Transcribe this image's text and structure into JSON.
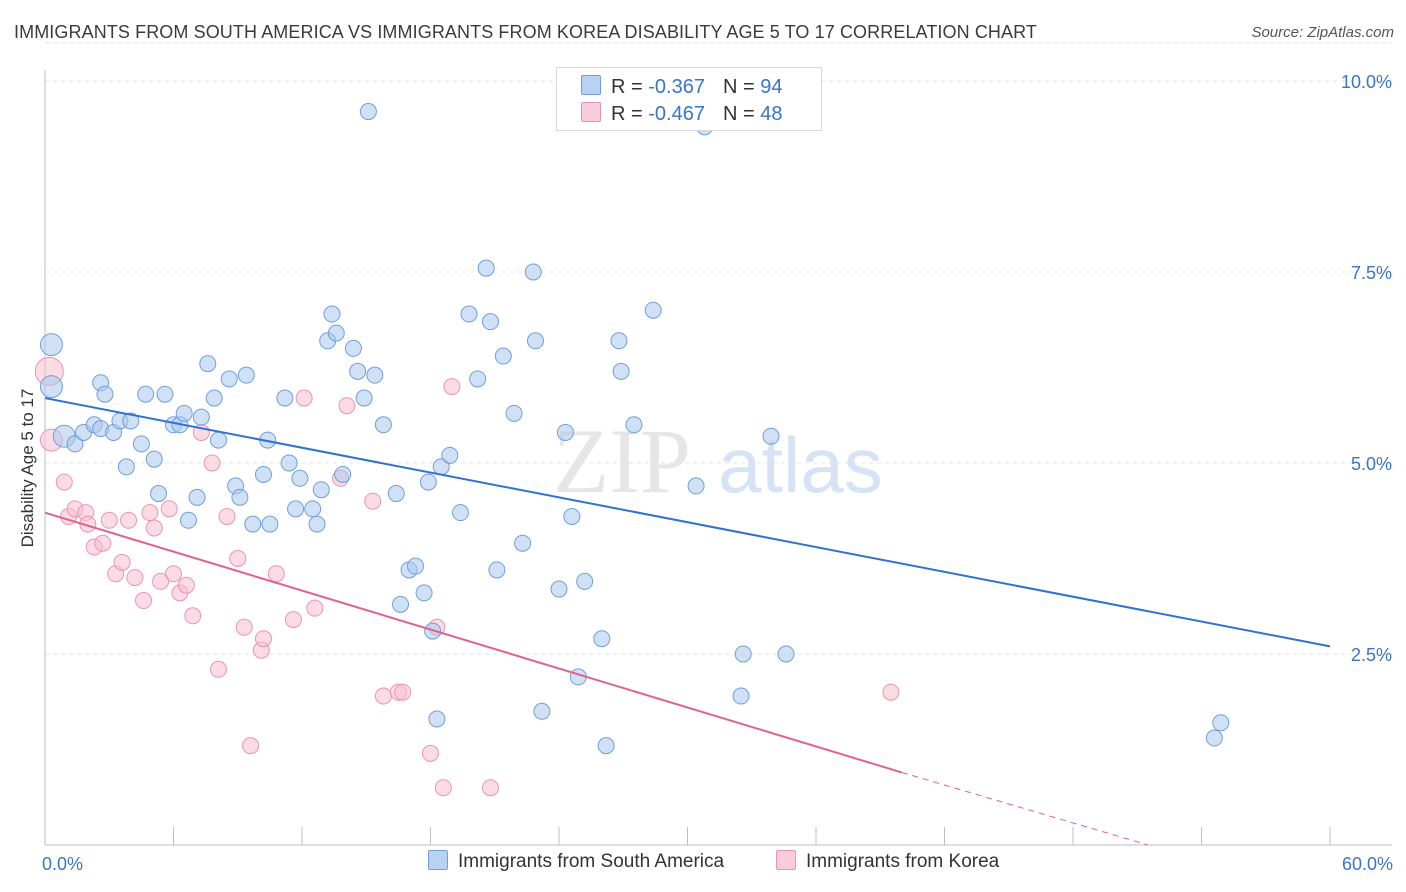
{
  "header": {
    "title": "IMMIGRANTS FROM SOUTH AMERICA VS IMMIGRANTS FROM KOREA DISABILITY AGE 5 TO 17 CORRELATION CHART",
    "source": "Source: ZipAtlas.com"
  },
  "watermark": {
    "zip": "ZIP",
    "atlas": "atlas"
  },
  "colors": {
    "blue_fill": "#a9c8ef",
    "blue_stroke": "#6f9fdc",
    "blue_line": "#2f72d2",
    "pink_fill": "#f7c0d0",
    "pink_stroke": "#eb94b0",
    "pink_line": "#e0628e",
    "tick_text": "#3a74c8",
    "grid": "#e4e4e4"
  },
  "legend_top": {
    "rows": [
      {
        "r_label": "R = ",
        "r_value": "-0.367",
        "n_label": "N = ",
        "n_value": "94"
      },
      {
        "r_label": "R = ",
        "r_value": "-0.467",
        "n_label": "N = ",
        "n_value": "48"
      }
    ]
  },
  "legend_bottom": {
    "items": [
      "Immigrants from South America",
      "Immigrants from Korea"
    ]
  },
  "chart_data": {
    "type": "scatter",
    "title": "IMMIGRANTS FROM SOUTH AMERICA VS IMMIGRANTS FROM KOREA DISABILITY AGE 5 TO 17 CORRELATION CHART",
    "xlabel": "",
    "ylabel": "Disability Age 5 to 17",
    "xlim": [
      0,
      60
    ],
    "ylim": [
      0,
      10.5
    ],
    "x_tick_labels": [
      "0.0%",
      "60.0%"
    ],
    "y_ticks": [
      2.5,
      5.0,
      7.5,
      10.0
    ],
    "y_tick_labels": [
      "2.5%",
      "5.0%",
      "7.5%",
      "10.0%"
    ],
    "grid": true,
    "legend_position": "top-center",
    "series": [
      {
        "name": "Immigrants from South America",
        "r": -0.367,
        "n": 94,
        "trend": {
          "x": [
            0,
            60
          ],
          "y": [
            5.85,
            2.6
          ]
        },
        "points": [
          [
            0.3,
            6.55,
            11
          ],
          [
            0.3,
            6.0,
            11
          ],
          [
            0.9,
            5.35,
            11
          ],
          [
            1.4,
            5.25,
            8
          ],
          [
            1.8,
            5.4,
            8
          ],
          [
            2.3,
            5.5,
            8
          ],
          [
            2.6,
            5.45,
            8
          ],
          [
            2.6,
            6.05,
            8
          ],
          [
            2.8,
            5.9,
            8
          ],
          [
            3.2,
            5.4,
            8
          ],
          [
            3.5,
            5.55,
            8
          ],
          [
            3.8,
            4.95,
            8
          ],
          [
            4.0,
            5.55,
            8
          ],
          [
            4.5,
            5.25,
            8
          ],
          [
            4.7,
            5.9,
            8
          ],
          [
            5.1,
            5.05,
            8
          ],
          [
            5.3,
            4.6,
            8
          ],
          [
            5.6,
            5.9,
            8
          ],
          [
            6.0,
            5.5,
            8
          ],
          [
            6.3,
            5.5,
            8
          ],
          [
            6.5,
            5.65,
            8
          ],
          [
            6.7,
            4.25,
            8
          ],
          [
            7.1,
            4.55,
            8
          ],
          [
            7.3,
            5.6,
            8
          ],
          [
            7.6,
            6.3,
            8
          ],
          [
            7.9,
            5.85,
            8
          ],
          [
            8.1,
            5.3,
            8
          ],
          [
            8.6,
            6.1,
            8
          ],
          [
            8.9,
            4.7,
            8
          ],
          [
            9.1,
            4.55,
            8
          ],
          [
            9.4,
            6.15,
            8
          ],
          [
            9.7,
            4.2,
            8
          ],
          [
            10.2,
            4.85,
            8
          ],
          [
            10.4,
            5.3,
            8
          ],
          [
            10.5,
            4.2,
            8
          ],
          [
            11.2,
            5.85,
            8
          ],
          [
            11.4,
            5.0,
            8
          ],
          [
            11.7,
            4.4,
            8
          ],
          [
            11.9,
            4.8,
            8
          ],
          [
            12.5,
            4.4,
            8
          ],
          [
            12.7,
            4.2,
            8
          ],
          [
            12.9,
            4.65,
            8
          ],
          [
            13.2,
            6.6,
            8
          ],
          [
            13.4,
            6.95,
            8
          ],
          [
            13.6,
            6.7,
            8
          ],
          [
            13.9,
            4.85,
            8
          ],
          [
            14.4,
            6.5,
            8
          ],
          [
            14.6,
            6.2,
            8
          ],
          [
            14.9,
            5.85,
            8
          ],
          [
            15.1,
            9.6,
            8
          ],
          [
            15.4,
            6.15,
            8
          ],
          [
            15.8,
            5.5,
            8
          ],
          [
            16.4,
            4.6,
            8
          ],
          [
            16.6,
            3.15,
            8
          ],
          [
            17.0,
            3.6,
            8
          ],
          [
            17.3,
            3.65,
            8
          ],
          [
            17.7,
            3.3,
            8
          ],
          [
            17.9,
            4.75,
            8
          ],
          [
            18.1,
            2.8,
            8
          ],
          [
            18.3,
            1.65,
            8
          ],
          [
            18.5,
            4.95,
            8
          ],
          [
            18.9,
            5.1,
            8
          ],
          [
            19.4,
            4.35,
            8
          ],
          [
            19.8,
            6.95,
            8
          ],
          [
            20.2,
            6.1,
            8
          ],
          [
            20.6,
            7.55,
            8
          ],
          [
            20.8,
            6.85,
            8
          ],
          [
            21.1,
            3.6,
            8
          ],
          [
            21.4,
            6.4,
            8
          ],
          [
            21.9,
            5.65,
            8
          ],
          [
            22.3,
            3.95,
            8
          ],
          [
            22.8,
            7.5,
            8
          ],
          [
            22.9,
            6.6,
            8
          ],
          [
            23.2,
            1.75,
            8
          ],
          [
            24.0,
            3.35,
            8
          ],
          [
            24.3,
            5.4,
            8
          ],
          [
            24.6,
            4.3,
            8
          ],
          [
            24.9,
            2.2,
            8
          ],
          [
            25.2,
            3.45,
            8
          ],
          [
            26.0,
            2.7,
            8
          ],
          [
            26.2,
            1.3,
            8
          ],
          [
            26.8,
            6.6,
            8
          ],
          [
            26.9,
            6.2,
            8
          ],
          [
            27.5,
            5.5,
            8
          ],
          [
            28.4,
            7.0,
            8
          ],
          [
            30.4,
            4.7,
            8
          ],
          [
            30.8,
            9.4,
            8
          ],
          [
            32.5,
            1.95,
            8
          ],
          [
            32.6,
            2.5,
            8
          ],
          [
            33.9,
            5.35,
            8
          ],
          [
            34.6,
            2.5,
            8
          ],
          [
            54.6,
            1.4,
            8
          ],
          [
            54.9,
            1.6,
            8
          ],
          [
            36.0,
            1.95,
            0
          ]
        ]
      },
      {
        "name": "Immigrants from Korea",
        "r": -0.467,
        "n": 48,
        "trend": {
          "x": [
            0,
            40
          ],
          "y": [
            4.35,
            0.95
          ]
        },
        "trend_dashed": {
          "x": [
            40,
            51.5
          ],
          "y": [
            0.95,
            0.0
          ]
        },
        "points": [
          [
            0.2,
            6.2,
            14
          ],
          [
            0.3,
            5.3,
            11
          ],
          [
            0.9,
            4.75,
            8
          ],
          [
            1.1,
            4.3,
            8
          ],
          [
            1.4,
            4.4,
            8
          ],
          [
            1.9,
            4.35,
            8
          ],
          [
            2.0,
            4.2,
            8
          ],
          [
            2.3,
            3.9,
            8
          ],
          [
            2.7,
            3.95,
            8
          ],
          [
            3.0,
            4.25,
            8
          ],
          [
            3.3,
            3.55,
            8
          ],
          [
            3.6,
            3.7,
            8
          ],
          [
            3.9,
            4.25,
            8
          ],
          [
            4.2,
            3.5,
            8
          ],
          [
            4.6,
            3.2,
            8
          ],
          [
            4.9,
            4.35,
            8
          ],
          [
            5.1,
            4.15,
            8
          ],
          [
            5.4,
            3.45,
            8
          ],
          [
            5.8,
            4.4,
            8
          ],
          [
            6.0,
            3.55,
            8
          ],
          [
            6.3,
            3.3,
            8
          ],
          [
            6.6,
            3.4,
            8
          ],
          [
            6.9,
            3.0,
            8
          ],
          [
            7.3,
            5.4,
            8
          ],
          [
            7.8,
            5.0,
            8
          ],
          [
            8.1,
            2.3,
            8
          ],
          [
            8.5,
            4.3,
            8
          ],
          [
            9.0,
            3.75,
            8
          ],
          [
            9.3,
            2.85,
            8
          ],
          [
            9.6,
            1.3,
            8
          ],
          [
            10.1,
            2.55,
            8
          ],
          [
            10.2,
            2.7,
            8
          ],
          [
            10.8,
            3.55,
            8
          ],
          [
            11.6,
            2.95,
            8
          ],
          [
            12.1,
            5.85,
            8
          ],
          [
            12.6,
            3.1,
            8
          ],
          [
            13.8,
            4.8,
            8
          ],
          [
            14.1,
            5.75,
            8
          ],
          [
            15.3,
            4.5,
            8
          ],
          [
            15.8,
            1.95,
            8
          ],
          [
            16.5,
            2.0,
            8
          ],
          [
            16.7,
            2.0,
            8
          ],
          [
            18.0,
            1.2,
            8
          ],
          [
            18.3,
            2.85,
            8
          ],
          [
            18.6,
            0.75,
            8
          ],
          [
            19.0,
            6.0,
            8
          ],
          [
            20.8,
            0.75,
            8
          ],
          [
            39.5,
            2.0,
            8
          ]
        ]
      }
    ]
  }
}
